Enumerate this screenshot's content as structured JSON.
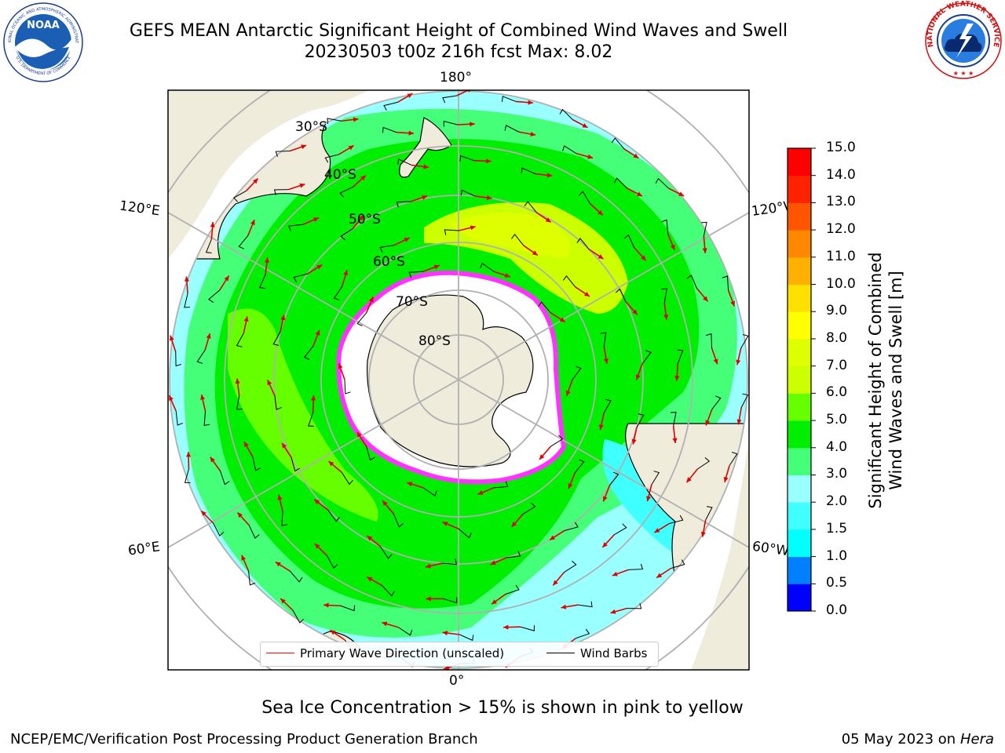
{
  "header": {
    "title_line1": "GEFS MEAN Antarctic Significant Height of Combined Wind Waves and Swell",
    "title_line2": "20230503 t00z 216h fcst   Max: 8.02"
  },
  "logos": {
    "left": {
      "name": "NOAA",
      "ring_text": "NATIONAL OCEANIC AND ATMOSPHERIC ADMINISTRATION",
      "ring_text_bottom": "U.S. DEPARTMENT OF COMMERCE"
    },
    "right": {
      "name": "NATIONAL WEATHER SERVICE"
    }
  },
  "map": {
    "projection": "south-polar-stereographic",
    "longitude_labels": {
      "top": "180°",
      "bottom": "0°",
      "upper_left": "120°E",
      "upper_right": "120°W",
      "lower_left": "60°E",
      "lower_right": "60°W"
    },
    "latitude_labels": [
      "30°S",
      "40°S",
      "50°S",
      "60°S",
      "70°S",
      "80°S"
    ],
    "colors": {
      "land": "#efecdc",
      "ice": "#ffffff",
      "ice_edge": "#ff33ff",
      "grid": "#b0b0b0",
      "wave_arrow": "#ff0000",
      "wind_barb": "#000000"
    }
  },
  "legend": {
    "items": [
      {
        "label": "Primary Wave Direction (unscaled)",
        "color": "#ff0000"
      },
      {
        "label": "Wind Barbs",
        "color": "#000000"
      }
    ]
  },
  "colorbar": {
    "label_line1": "Significant Height of Combined",
    "label_line2": "Wind Waves and Swell [m]",
    "ticks": [
      "0.0",
      "0.5",
      "1.0",
      "1.5",
      "2.0",
      "3.0",
      "4.0",
      "5.0",
      "6.0",
      "7.0",
      "8.0",
      "9.0",
      "10.0",
      "11.0",
      "12.0",
      "13.0",
      "14.0",
      "15.0"
    ],
    "colors": [
      "#0000ff",
      "#0080ff",
      "#00ffff",
      "#40ffff",
      "#99ffff",
      "#44ff77",
      "#00ee00",
      "#66ff00",
      "#ccff00",
      "#ddff00",
      "#ffff00",
      "#ffe000",
      "#ffb000",
      "#ff8800",
      "#ff5500",
      "#ff2200",
      "#ff0000"
    ]
  },
  "caption": "Sea Ice Concentration > 15% is shown in pink to yellow",
  "footer": {
    "left": "NCEP/EMC/Verification Post Processing Product Generation Branch",
    "right_date": "05 May 2023 on",
    "right_host": "Hera"
  }
}
